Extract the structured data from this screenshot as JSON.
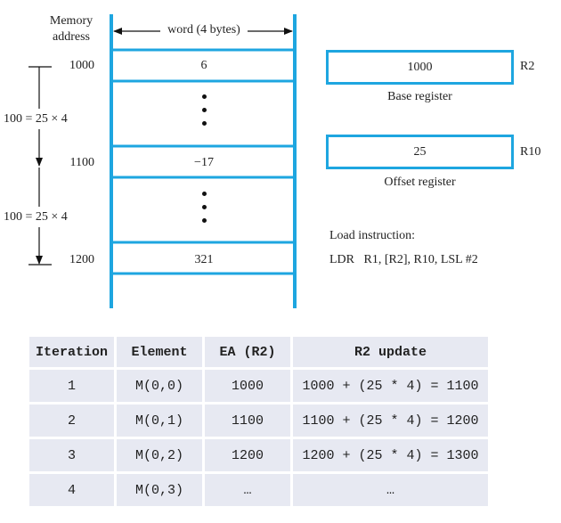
{
  "memory": {
    "header_line1": "Memory",
    "header_line2": "address",
    "word_label": "word (4 bytes)",
    "rows": [
      {
        "address": "1000",
        "value": "6"
      },
      {
        "address": "1100",
        "value": "−17"
      },
      {
        "address": "1200",
        "value": "321"
      }
    ],
    "spacing_label_1": "100 = 25 × 4",
    "spacing_label_2": "100 = 25 × 4"
  },
  "registers": {
    "base": {
      "value": "1000",
      "name": "R2",
      "caption": "Base register"
    },
    "offset": {
      "value": "25",
      "name": "R10",
      "caption": "Offset register"
    },
    "colors": {
      "accent": "#1ea6e0"
    }
  },
  "instruction": {
    "title": "Load instruction:",
    "text": "LDR   R1, [R2], R10, LSL #2"
  },
  "table": {
    "headers": [
      "Iteration",
      "Element",
      "EA (R2)",
      "R2 update"
    ],
    "rows": [
      [
        "1",
        "M(0,0)",
        "1000",
        "1000 + (25 * 4) = 1100"
      ],
      [
        "2",
        "M(0,1)",
        "1100",
        "1100 + (25 * 4) = 1200"
      ],
      [
        "3",
        "M(0,2)",
        "1200",
        "1200 + (25 * 4) = 1300"
      ],
      [
        "4",
        "M(0,3)",
        "…",
        "…"
      ]
    ]
  }
}
